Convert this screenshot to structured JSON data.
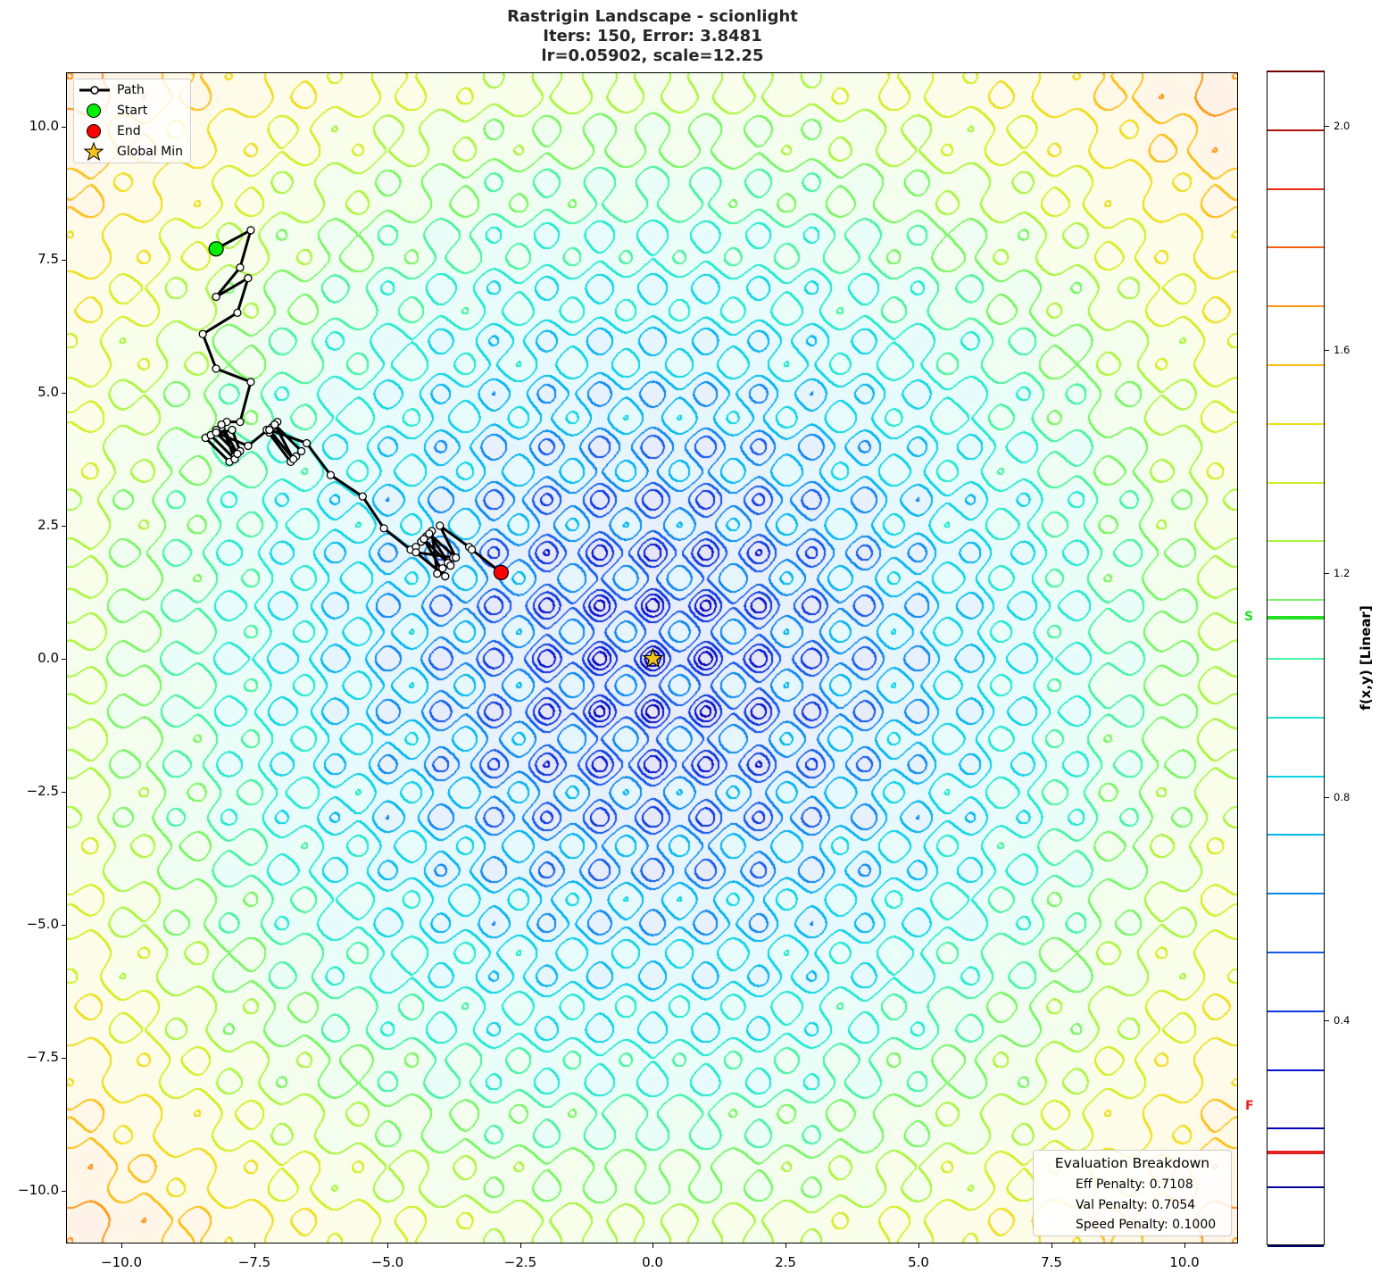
{
  "chart_data": {
    "type": "contour",
    "title": "Rastrigin Landscape - scionlight",
    "subtitle_lines": [
      "Iters: 150, Error: 3.8481",
      "lr=0.05902, scale=12.25"
    ],
    "xlabel": "",
    "ylabel": "",
    "xlim": [
      -11,
      11
    ],
    "ylim": [
      -11,
      11
    ],
    "x_ticks": [
      -10.0,
      -7.5,
      -5.0,
      -2.5,
      0.0,
      2.5,
      5.0,
      7.5,
      10.0
    ],
    "y_ticks": [
      -10.0,
      -7.5,
      -5.0,
      -2.5,
      0.0,
      2.5,
      5.0,
      7.5,
      10.0
    ],
    "x_tick_labels": [
      "−10.0",
      "−7.5",
      "−5.0",
      "−2.5",
      "0.0",
      "2.5",
      "5.0",
      "7.5",
      "10.0"
    ],
    "y_tick_labels": [
      "−10.0",
      "−7.5",
      "−5.0",
      "−2.5",
      "0.0",
      "2.5",
      "5.0",
      "7.5",
      "10.0"
    ],
    "function": "rastrigin",
    "function_scale": 12.25,
    "grid": false,
    "legend": {
      "position": "upper left",
      "entries": [
        {
          "label": "Path",
          "marker": "line-with-open-circle",
          "color": "#000000"
        },
        {
          "label": "Start",
          "marker": "circle",
          "color": "#00ee00"
        },
        {
          "label": "End",
          "marker": "circle",
          "color": "#ff0000"
        },
        {
          "label": "Global Min",
          "marker": "star",
          "color": "#f2c21b"
        }
      ]
    },
    "path": {
      "start": [
        -8.2,
        7.7
      ],
      "end": [
        -2.85,
        1.62
      ],
      "points": [
        [
          -8.2,
          7.7
        ],
        [
          -7.55,
          8.05
        ],
        [
          -7.75,
          7.35
        ],
        [
          -8.2,
          6.8
        ],
        [
          -7.6,
          7.15
        ],
        [
          -7.8,
          6.5
        ],
        [
          -8.45,
          6.1
        ],
        [
          -8.2,
          5.45
        ],
        [
          -7.55,
          5.2
        ],
        [
          -7.75,
          4.45
        ],
        [
          -8.0,
          4.45
        ],
        [
          -8.1,
          4.35
        ],
        [
          -8.2,
          4.3
        ],
        [
          -8.3,
          4.2
        ],
        [
          -8.4,
          4.15
        ],
        [
          -7.95,
          3.7
        ],
        [
          -7.85,
          3.8
        ],
        [
          -7.75,
          3.9
        ],
        [
          -7.9,
          4.3
        ],
        [
          -8.3,
          4.2
        ],
        [
          -7.85,
          3.75
        ],
        [
          -8.1,
          4.4
        ],
        [
          -7.8,
          3.85
        ],
        [
          -8.2,
          4.25
        ],
        [
          -7.6,
          4.0
        ],
        [
          -7.05,
          4.45
        ],
        [
          -7.15,
          4.35
        ],
        [
          -7.2,
          4.25
        ],
        [
          -7.25,
          4.3
        ],
        [
          -6.8,
          3.7
        ],
        [
          -6.7,
          3.8
        ],
        [
          -6.6,
          3.9
        ],
        [
          -7.1,
          4.4
        ],
        [
          -6.75,
          3.75
        ],
        [
          -7.2,
          4.3
        ],
        [
          -6.5,
          4.05
        ],
        [
          -6.05,
          3.45
        ],
        [
          -5.45,
          3.05
        ],
        [
          -5.05,
          2.45
        ],
        [
          -4.55,
          2.05
        ],
        [
          -4.45,
          2.1
        ],
        [
          -4.35,
          2.2
        ],
        [
          -4.25,
          2.3
        ],
        [
          -4.15,
          2.4
        ],
        [
          -4.05,
          1.6
        ],
        [
          -3.95,
          1.7
        ],
        [
          -3.85,
          1.8
        ],
        [
          -3.75,
          1.9
        ],
        [
          -4.45,
          2.0
        ],
        [
          -3.9,
          1.55
        ],
        [
          -4.3,
          2.25
        ],
        [
          -3.8,
          1.75
        ],
        [
          -4.2,
          2.35
        ],
        [
          -3.7,
          1.9
        ],
        [
          -4.0,
          2.5
        ],
        [
          -3.45,
          2.1
        ],
        [
          -3.4,
          2.05
        ],
        [
          -2.85,
          1.62
        ]
      ]
    },
    "global_min": [
      0.0,
      0.0
    ],
    "colorbar": {
      "label": "f(x,y) [Linear]",
      "min": 0.1,
      "max": 2.1,
      "ticks": [
        0.4,
        0.8,
        1.2,
        1.6,
        2.0
      ],
      "tick_labels": [
        "0.4",
        "0.8",
        "1.2",
        "1.6",
        "2.0"
      ],
      "levels": [
        0.1,
        0.2,
        0.3,
        0.4,
        0.5,
        0.6,
        0.7,
        0.8,
        0.9,
        1.0,
        1.1,
        1.2,
        1.3,
        1.4,
        1.5,
        1.6,
        1.7,
        1.8,
        1.9,
        2.0,
        2.1
      ],
      "markers": [
        {
          "label": "S",
          "value": 1.17,
          "color": "#22e022"
        },
        {
          "label": "F",
          "value": 0.26,
          "color": "#e82020"
        }
      ]
    },
    "annotation": {
      "title": "Evaluation Breakdown",
      "lines": [
        "Eff Penalty: 0.7108",
        "Val Penalty: 0.7054",
        "Speed Penalty: 0.1000"
      ]
    }
  },
  "title": {
    "line1": "Rastrigin Landscape - scionlight",
    "line2": "Iters: 150, Error: 3.8481",
    "line3": "lr=0.05902, scale=12.25"
  },
  "legend": {
    "path": "Path",
    "start": "Start",
    "end": "End",
    "global_min": "Global Min"
  },
  "eval": {
    "title": "Evaluation Breakdown",
    "eff": "Eff Penalty: 0.7108",
    "val": "Val Penalty: 0.7054",
    "speed": "Speed Penalty: 0.1000"
  },
  "colorbar": {
    "label": "f(x,y) [Linear]",
    "t04": "0.4",
    "t08": "0.8",
    "t12": "1.2",
    "t16": "1.6",
    "t20": "2.0",
    "s_marker": "S",
    "f_marker": "F"
  },
  "axes": {
    "x": [
      "−10.0",
      "−7.5",
      "−5.0",
      "−2.5",
      "0.0",
      "2.5",
      "5.0",
      "7.5",
      "10.0"
    ],
    "y": [
      "10.0",
      "7.5",
      "5.0",
      "2.5",
      "0.0",
      "−2.5",
      "−5.0",
      "−7.5",
      "−10.0"
    ]
  }
}
